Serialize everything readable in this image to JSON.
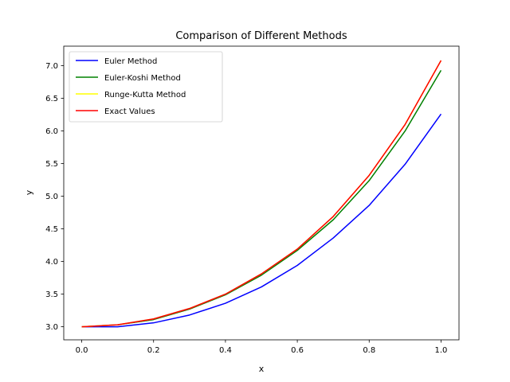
{
  "chart_data": {
    "type": "line",
    "title": "Comparison of Different Methods",
    "xlabel": "x",
    "ylabel": "y",
    "xlim": [
      -0.05,
      1.05
    ],
    "ylim": [
      2.8,
      7.3
    ],
    "xticks": [
      0.0,
      0.2,
      0.4,
      0.6,
      0.8,
      1.0
    ],
    "xtick_labels": [
      "0.0",
      "0.2",
      "0.4",
      "0.6",
      "0.8",
      "1.0"
    ],
    "yticks": [
      3.0,
      3.5,
      4.0,
      4.5,
      5.0,
      5.5,
      6.0,
      6.5,
      7.0
    ],
    "ytick_labels": [
      "3.0",
      "3.5",
      "4.0",
      "4.5",
      "5.0",
      "5.5",
      "6.0",
      "6.5",
      "7.0"
    ],
    "grid": false,
    "legend_position": "top-left",
    "x": [
      0.0,
      0.1,
      0.2,
      0.3,
      0.4,
      0.5,
      0.6,
      0.7,
      0.8,
      0.9,
      1.0
    ],
    "series": [
      {
        "name": "Euler Method",
        "color": "#0000ff",
        "values": [
          3.0,
          3.0,
          3.06,
          3.18,
          3.36,
          3.61,
          3.94,
          4.36,
          4.86,
          5.49,
          6.26
        ]
      },
      {
        "name": "Euler-Koshi Method",
        "color": "#008000",
        "values": [
          3.0,
          3.03,
          3.11,
          3.27,
          3.49,
          3.79,
          4.17,
          4.64,
          5.24,
          6.0,
          6.93
        ]
      },
      {
        "name": "Runge-Kutta Method",
        "color": "#ffff00",
        "values": [
          3.0,
          3.03,
          3.12,
          3.28,
          3.5,
          3.81,
          4.19,
          4.69,
          5.32,
          6.1,
          7.08
        ]
      },
      {
        "name": "Exact Values",
        "color": "#ff0000",
        "values": [
          3.0,
          3.03,
          3.12,
          3.28,
          3.5,
          3.81,
          4.19,
          4.69,
          5.32,
          6.1,
          7.08
        ]
      }
    ]
  }
}
